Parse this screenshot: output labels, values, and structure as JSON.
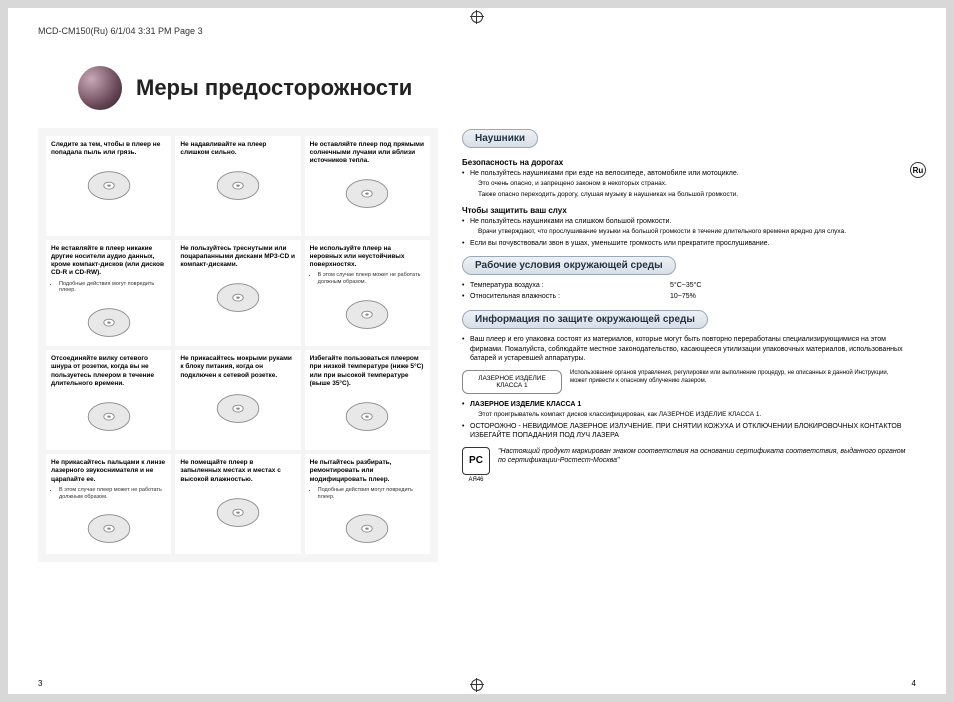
{
  "printHeader": "MCD-CM150(Ru)  6/1/04 3:31 PM  Page 3",
  "title": "Меры предосторожности",
  "ruBadge": "Ru",
  "pageLeft": "3",
  "pageRight": "4",
  "cells": [
    {
      "title": "Следите за тем, чтобы в плеер не попадала пыль или грязь.",
      "note": ""
    },
    {
      "title": "Не надавливайте на плеер слишком сильно.",
      "note": ""
    },
    {
      "title": "Не оставляйте плеер под прямыми солнечными лучами или вблизи источников тепла.",
      "note": ""
    },
    {
      "title": "Не вставляйте в плеер никакие другие носители аудио данных, кроме компакт-дисков (или дисков CD-R и CD-RW).",
      "note": "Подобные действия могут повредить плеер."
    },
    {
      "title": "Не пользуйтесь треснутыми или поцарапанными дисками MP3-CD и компакт-дисками.",
      "note": ""
    },
    {
      "title": "Не используйте плеер на неровных или неустойчивых поверхностях.",
      "note": "В этом случае плеер может не работать должным образом."
    },
    {
      "title": "Отсоединяйте вилку сетевого шнура от розетки, когда вы не пользуетесь плеером в течение длительного времени.",
      "note": ""
    },
    {
      "title": "Не прикасайтесь мокрыми руками к блоку питания, когда он подключен к сетевой розетке.",
      "note": ""
    },
    {
      "title": "Избегайте пользоваться плеером при низкой температуре (ниже 5°C) или при высокой температуре (выше 35°C).",
      "note": ""
    },
    {
      "title": "Не прикасайтесь пальцами к линзе лазерного звукоснимателя и не царапайте ее.",
      "note": "В этом случае плеер может не работать должным образом."
    },
    {
      "title": "Не помещайте плеер в запыленных местах и местах с высокой влажностью.",
      "note": ""
    },
    {
      "title": "Не пытайтесь разбирать, ремонтировать или модифицировать плеер.",
      "note": "Подобные действия могут повредить плеер."
    }
  ],
  "headphones": {
    "heading": "Наушники",
    "sub1": "Безопасность на дорогах",
    "items1": [
      "Не пользуйтесь наушниками при езде на велосипеде, автомобиле или мотоцикле.",
      "Это очень опасно, и запрещено законом в некоторых странах.",
      "Также опасно переходить дорогу, слушая музыку в наушниках на большой громкости."
    ],
    "sub2": "Чтобы защитить ваш слух",
    "items2": [
      "Не пользуйтесь наушниками на слишком большой громкости.",
      "Врачи утверждают, что прослушивание музыки на большой громкости в течение длительного времени вредно для слуха.",
      "Если вы почувствовали звон в ушах, уменьшите громкость или прекратите прослушивание."
    ]
  },
  "env": {
    "heading": "Рабочие условия окружающей среды",
    "rows": [
      {
        "k": "Температура воздуха :",
        "v": "5°C~35°C"
      },
      {
        "k": "Относительная влажность :",
        "v": "10~75%"
      }
    ]
  },
  "envInfo": {
    "heading": "Информация по защите окружающей среды",
    "bullet1": "Ваш плеер и его упаковка состоят из материалов, которые могут быть повторно переработаны специализирующимися на этом фирмами. Пожалуйста, соблюдайте местное законодательство, касающееся утилизации упаковочных материалов, использованных батарей и устаревшей аппаратуры.",
    "laserBox": "ЛАЗЕРНОЕ ИЗДЕЛИЕ КЛАССА 1",
    "laserText": "Использование органов управления, регулировки или выполнение процедур, не описанных в данной Инструкции, может привести к опасному облучению лазером.",
    "laserHead": "ЛАЗЕРНОЕ ИЗДЕЛИЕ КЛАССА 1",
    "laserItems": [
      "Этот проигрыватель компакт дисков классифицирован, как ЛАЗЕРНОЕ ИЗДЕЛИЕ КЛАССА 1.",
      "ОСТОРОЖНО - НЕВИДИМОЕ ЛАЗЕРНОЕ ИЗЛУЧЕНИЕ. ПРИ СНЯТИИ КОЖУХА И ОТКЛЮЧЕНИИ БЛОКИРОВОЧНЫХ КОНТАКТОВ ИЗБЕГАЙТЕ ПОПАДАНИЯ ПОД ЛУЧ ЛАЗЕРА"
    ],
    "cert": {
      "mark": "PC",
      "code": "АЯ46",
      "text": "\"Настоящий продукт маркирован знаком соответствия на основании сертификата соответствия, выданного органом по сертификации-Ростест-Москва\""
    }
  }
}
